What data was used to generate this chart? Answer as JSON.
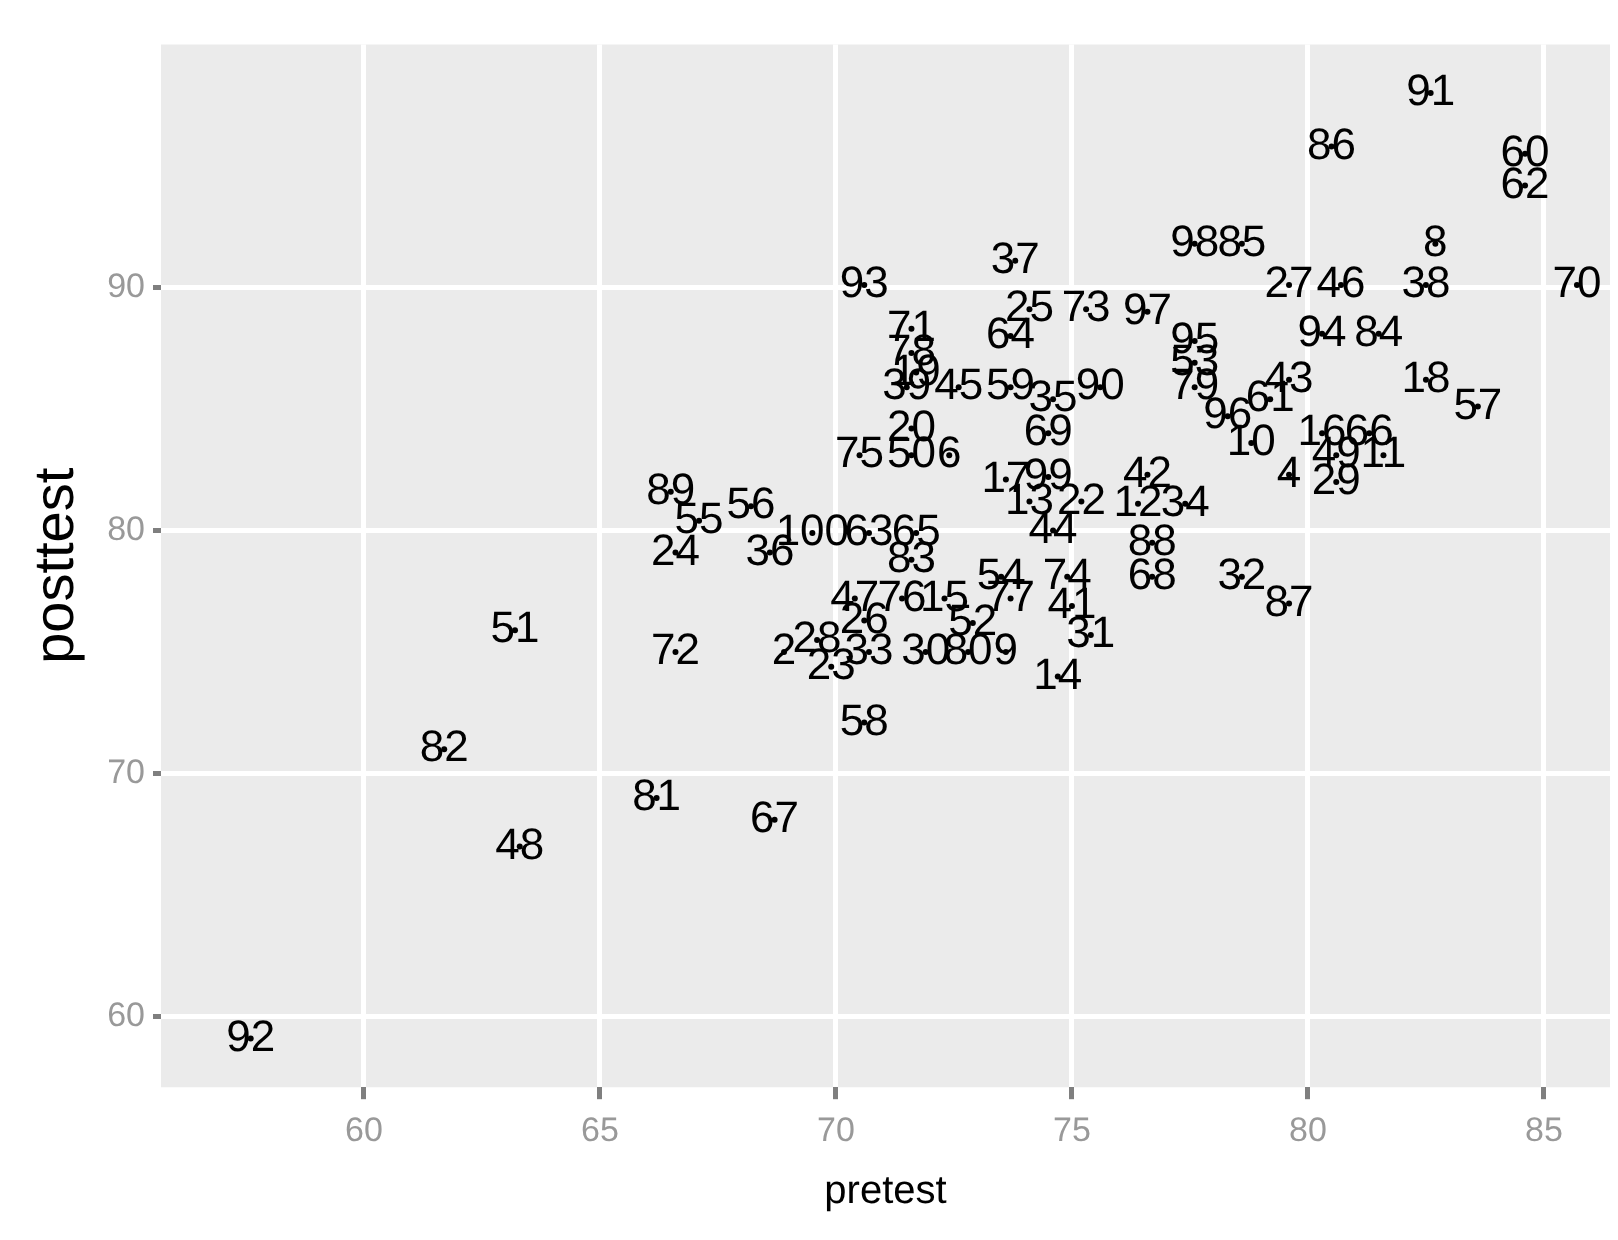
{
  "chart_data": {
    "type": "scatter",
    "xlabel": "pretest",
    "ylabel": "posttest",
    "marker": "circle",
    "grid": true,
    "xlim": [
      55.7,
      86.4
    ],
    "ylim": [
      57.1,
      100
    ],
    "xticks": [
      60,
      65,
      70,
      75,
      80,
      85
    ],
    "yticks": [
      60,
      70,
      80,
      90
    ],
    "x": [
      57.6,
      61.7,
      63.2,
      63.3,
      66.2,
      68.7,
      70.6,
      66.6,
      66.6,
      66.5,
      67.1,
      68.2,
      68.6,
      69.5,
      70.7,
      71.7,
      71.6,
      70.4,
      71.4,
      72.3,
      73.7,
      73.5,
      74.9,
      75.0,
      75.4,
      70.6,
      72.9,
      69.6,
      69.9,
      68.9,
      70.7,
      71.9,
      72.8,
      73.6,
      74.7,
      70.6,
      73.8,
      71.6,
      71.6,
      71.5,
      71.7,
      72.6,
      73.7,
      74.6,
      75.6,
      73.7,
      74.1,
      75.3,
      76.6,
      77.6,
      78.6,
      82.6,
      80.5,
      84.6,
      84.6,
      82.7,
      79.6,
      80.7,
      82.5,
      85.7,
      80.3,
      81.5,
      77.6,
      77.6,
      77.6,
      79.6,
      79.2,
      82.5,
      83.6,
      80.3,
      81.3,
      78.3,
      78.8,
      79.6,
      80.6,
      80.6,
      81.6,
      76.6,
      76.4,
      77.4,
      76.7,
      76.7,
      78.6,
      79.6,
      73.6,
      74.5,
      74.5,
      74.1,
      75.2,
      74.6,
      71.6,
      70.5,
      71.6,
      72.4
    ],
    "values": [
      59.1,
      71.0,
      75.9,
      67.0,
      69.0,
      68.1,
      72.1,
      79.1,
      75.0,
      81.6,
      80.4,
      81.0,
      79.1,
      79.9,
      79.9,
      79.9,
      78.8,
      77.2,
      77.2,
      77.2,
      77.2,
      78.1,
      78.1,
      76.9,
      75.7,
      76.3,
      76.2,
      75.5,
      74.4,
      75.0,
      75.0,
      75.0,
      75.0,
      75.0,
      74.0,
      90.1,
      91.1,
      88.3,
      87.3,
      85.9,
      86.5,
      85.9,
      85.9,
      85.4,
      85.9,
      88.0,
      89.1,
      89.1,
      89.0,
      91.8,
      91.8,
      98.0,
      95.8,
      95.5,
      94.2,
      91.8,
      90.1,
      90.1,
      90.1,
      90.1,
      88.1,
      88.1,
      87.8,
      86.9,
      85.9,
      86.2,
      85.4,
      86.2,
      85.1,
      84.0,
      84.0,
      84.7,
      83.6,
      82.3,
      82.0,
      83.1,
      83.1,
      82.3,
      81.1,
      81.1,
      79.5,
      78.1,
      78.1,
      77.0,
      82.1,
      82.2,
      84.0,
      81.2,
      81.2,
      80.0,
      84.2,
      83.1,
      83.1,
      83.1
    ],
    "annotations": [
      {
        "text": "92",
        "x": 57.6,
        "y": 59.1
      },
      {
        "text": "82",
        "x": 61.7,
        "y": 71.0
      },
      {
        "text": "51",
        "x": 63.2,
        "y": 75.9
      },
      {
        "text": "48",
        "x": 63.3,
        "y": 67.0
      },
      {
        "text": "81",
        "x": 66.2,
        "y": 69.0
      },
      {
        "text": "67",
        "x": 68.7,
        "y": 68.1
      },
      {
        "text": "58",
        "x": 70.6,
        "y": 72.1
      },
      {
        "text": "24",
        "x": 66.6,
        "y": 79.1
      },
      {
        "text": "72",
        "x": 66.6,
        "y": 75.0
      },
      {
        "text": "89",
        "x": 66.5,
        "y": 81.6
      },
      {
        "text": "55",
        "x": 67.1,
        "y": 80.4
      },
      {
        "text": "56",
        "x": 68.2,
        "y": 81.0
      },
      {
        "text": "36",
        "x": 68.6,
        "y": 79.1
      },
      {
        "text": "100",
        "x": 69.5,
        "y": 79.9
      },
      {
        "text": "63",
        "x": 70.7,
        "y": 79.9
      },
      {
        "text": "65",
        "x": 71.7,
        "y": 79.9
      },
      {
        "text": "83",
        "x": 71.6,
        "y": 78.8
      },
      {
        "text": "47",
        "x": 70.4,
        "y": 77.2
      },
      {
        "text": "76",
        "x": 71.4,
        "y": 77.2
      },
      {
        "text": "15",
        "x": 72.3,
        "y": 77.2
      },
      {
        "text": "77",
        "x": 73.7,
        "y": 77.2
      },
      {
        "text": "54",
        "x": 73.5,
        "y": 78.1
      },
      {
        "text": "74",
        "x": 74.9,
        "y": 78.1
      },
      {
        "text": "41",
        "x": 75.0,
        "y": 76.9
      },
      {
        "text": "31",
        "x": 75.4,
        "y": 75.7
      },
      {
        "text": "26",
        "x": 70.6,
        "y": 76.3
      },
      {
        "text": "52",
        "x": 72.9,
        "y": 76.2
      },
      {
        "text": "28",
        "x": 69.6,
        "y": 75.5
      },
      {
        "text": "23",
        "x": 69.9,
        "y": 74.4
      },
      {
        "text": "2",
        "x": 68.9,
        "y": 75.0
      },
      {
        "text": "33",
        "x": 70.7,
        "y": 75.0
      },
      {
        "text": "30",
        "x": 71.9,
        "y": 75.0
      },
      {
        "text": "80",
        "x": 72.8,
        "y": 75.0
      },
      {
        "text": "9",
        "x": 73.6,
        "y": 75.0
      },
      {
        "text": "14",
        "x": 74.7,
        "y": 74.0
      },
      {
        "text": "93",
        "x": 70.6,
        "y": 90.1
      },
      {
        "text": "37",
        "x": 73.8,
        "y": 91.1
      },
      {
        "text": "71",
        "x": 71.6,
        "y": 88.3
      },
      {
        "text": "78",
        "x": 71.6,
        "y": 87.3
      },
      {
        "text": "39",
        "x": 71.5,
        "y": 85.9
      },
      {
        "text": "19",
        "x": 71.7,
        "y": 86.5
      },
      {
        "text": "45",
        "x": 72.6,
        "y": 85.9
      },
      {
        "text": "59",
        "x": 73.7,
        "y": 85.9
      },
      {
        "text": "35",
        "x": 74.6,
        "y": 85.4
      },
      {
        "text": "90",
        "x": 75.6,
        "y": 85.9
      },
      {
        "text": "64",
        "x": 73.7,
        "y": 88.0
      },
      {
        "text": "25",
        "x": 74.1,
        "y": 89.1
      },
      {
        "text": "73",
        "x": 75.3,
        "y": 89.1
      },
      {
        "text": "97",
        "x": 76.6,
        "y": 89.0
      },
      {
        "text": "98",
        "x": 77.6,
        "y": 91.8
      },
      {
        "text": "85",
        "x": 78.6,
        "y": 91.8
      },
      {
        "text": "91",
        "x": 82.6,
        "y": 98.0
      },
      {
        "text": "86",
        "x": 80.5,
        "y": 95.8
      },
      {
        "text": "60",
        "x": 84.6,
        "y": 95.5
      },
      {
        "text": "62",
        "x": 84.6,
        "y": 94.2
      },
      {
        "text": "8",
        "x": 82.7,
        "y": 91.8
      },
      {
        "text": "27",
        "x": 79.6,
        "y": 90.1
      },
      {
        "text": "46",
        "x": 80.7,
        "y": 90.1
      },
      {
        "text": "38",
        "x": 82.5,
        "y": 90.1
      },
      {
        "text": "70",
        "x": 85.7,
        "y": 90.1
      },
      {
        "text": "94",
        "x": 80.3,
        "y": 88.1
      },
      {
        "text": "84",
        "x": 81.5,
        "y": 88.1
      },
      {
        "text": "95",
        "x": 77.6,
        "y": 87.8
      },
      {
        "text": "53",
        "x": 77.6,
        "y": 86.9
      },
      {
        "text": "79",
        "x": 77.6,
        "y": 85.9
      },
      {
        "text": "43",
        "x": 79.6,
        "y": 86.2
      },
      {
        "text": "61",
        "x": 79.2,
        "y": 85.4
      },
      {
        "text": "18",
        "x": 82.5,
        "y": 86.2
      },
      {
        "text": "57",
        "x": 83.6,
        "y": 85.1
      },
      {
        "text": "16",
        "x": 80.3,
        "y": 84.0
      },
      {
        "text": "66",
        "x": 81.3,
        "y": 84.0
      },
      {
        "text": "96",
        "x": 78.3,
        "y": 84.7
      },
      {
        "text": "10",
        "x": 78.8,
        "y": 83.6
      },
      {
        "text": "4",
        "x": 79.6,
        "y": 82.3
      },
      {
        "text": "29",
        "x": 80.6,
        "y": 82.0
      },
      {
        "text": "49",
        "x": 80.6,
        "y": 83.1
      },
      {
        "text": "11",
        "x": 81.6,
        "y": 83.1
      },
      {
        "text": "42",
        "x": 76.6,
        "y": 82.3
      },
      {
        "text": "12",
        "x": 76.4,
        "y": 81.1
      },
      {
        "text": "34",
        "x": 77.4,
        "y": 81.1
      },
      {
        "text": "88",
        "x": 76.7,
        "y": 79.5
      },
      {
        "text": "68",
        "x": 76.7,
        "y": 78.1
      },
      {
        "text": "32",
        "x": 78.6,
        "y": 78.1
      },
      {
        "text": "87",
        "x": 79.6,
        "y": 77.0
      },
      {
        "text": "17",
        "x": 73.6,
        "y": 82.1
      },
      {
        "text": "99",
        "x": 74.5,
        "y": 82.2
      },
      {
        "text": "69",
        "x": 74.5,
        "y": 84.0
      },
      {
        "text": "13",
        "x": 74.1,
        "y": 81.2
      },
      {
        "text": "22",
        "x": 75.2,
        "y": 81.2
      },
      {
        "text": "44",
        "x": 74.6,
        "y": 80.0
      },
      {
        "text": "20",
        "x": 71.6,
        "y": 84.2
      },
      {
        "text": "75",
        "x": 70.5,
        "y": 83.1
      },
      {
        "text": "50",
        "x": 71.6,
        "y": 83.1
      },
      {
        "text": "6",
        "x": 72.4,
        "y": 83.1
      }
    ]
  }
}
